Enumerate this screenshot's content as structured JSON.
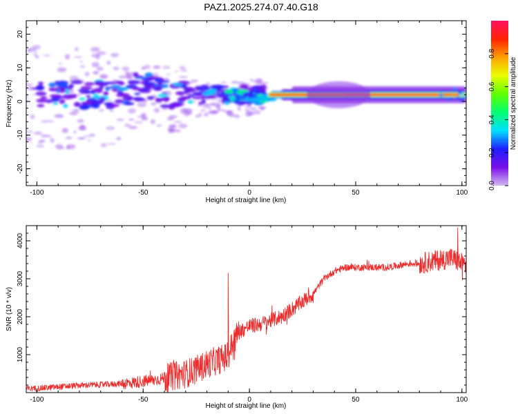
{
  "figure": {
    "title": "PAZ1.2025.274.07.40.G18"
  },
  "chart_data": [
    {
      "type": "heatmap",
      "title": "",
      "xlabel": "Height of straight line (km)",
      "ylabel": "Frequency (Hz)",
      "xlim": [
        -105,
        102
      ],
      "ylim": [
        -25,
        24
      ],
      "xticks": [
        -100,
        -50,
        0,
        50,
        100
      ],
      "yticks": [
        -20,
        -10,
        0,
        10,
        20
      ],
      "grid": false,
      "colorbar": {
        "label": "Normalized spectral amplitude",
        "range": [
          0,
          1
        ],
        "ticks": [
          0.0,
          0.2,
          0.4,
          0.6,
          0.8
        ],
        "tick_labels": [
          "0.0",
          "0.2",
          "0.4",
          "0.6",
          "0.8"
        ],
        "colormap": [
          "#d2b8f2",
          "#7a10e8",
          "#1e1eff",
          "#00e0ff",
          "#00ff70",
          "#60ff00",
          "#e8ff00",
          "#ffa000",
          "#ff2000",
          "#ff1060"
        ]
      },
      "features": [
        {
          "height_range_km": [
            -105,
            -10
          ],
          "freq_center_hz": 2,
          "freq_spread_hz": 8,
          "amplitude": "low, scattered"
        },
        {
          "height_range_km": [
            -10,
            8
          ],
          "freq_center_hz": 1.5,
          "freq_spread_hz": 2,
          "amplitude": "medium"
        },
        {
          "height_range_km": [
            8,
            100
          ],
          "freq_center_hz": 2,
          "freq_spread_hz": 1,
          "amplitude": "peak 0.9-1.0"
        }
      ]
    },
    {
      "type": "line",
      "title": "",
      "xlabel": "Height of straight line (km)",
      "ylabel": "SNR (10 * v/v)",
      "xlim": [
        -105,
        102
      ],
      "ylim": [
        0,
        4400
      ],
      "xticks": [
        -100,
        -50,
        0,
        50,
        100
      ],
      "yticks": [
        1000,
        2000,
        3000,
        4000
      ],
      "grid": false,
      "color": "#ee2a2a",
      "series": [
        {
          "name": "SNR",
          "x": [
            -105,
            -100,
            -95,
            -90,
            -85,
            -80,
            -75,
            -70,
            -65,
            -60,
            -55,
            -50,
            -45,
            -40,
            -35,
            -30,
            -25,
            -20,
            -15,
            -10,
            -8,
            -5,
            0,
            5,
            10,
            15,
            20,
            25,
            30,
            35,
            40,
            45,
            50,
            55,
            60,
            65,
            70,
            75,
            80,
            85,
            90,
            95,
            100,
            102
          ],
          "y": [
            100,
            110,
            130,
            150,
            170,
            190,
            200,
            210,
            220,
            240,
            260,
            300,
            330,
            380,
            440,
            500,
            600,
            750,
            850,
            950,
            1300,
            1600,
            1750,
            1800,
            1900,
            2000,
            2200,
            2400,
            2600,
            3000,
            3200,
            3300,
            3300,
            3300,
            3300,
            3300,
            3350,
            3400,
            3400,
            3450,
            3500,
            3550,
            3400,
            3350
          ]
        }
      ],
      "annotations": [
        {
          "x": -10,
          "y": 3150,
          "text": ""
        },
        {
          "x": 98,
          "y": 4350,
          "text": ""
        }
      ]
    }
  ]
}
